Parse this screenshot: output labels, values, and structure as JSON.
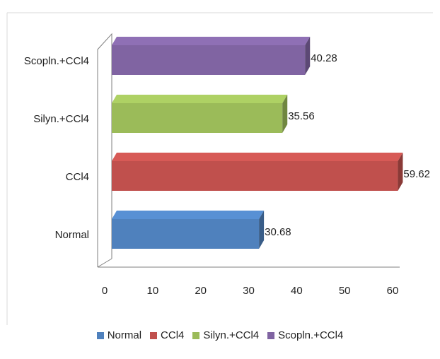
{
  "chart_data": {
    "type": "bar",
    "orientation": "horizontal",
    "style": "3d",
    "title": "",
    "xlabel": "",
    "ylabel": "",
    "categories": [
      "Normal",
      "CCl4",
      "Silyn.+CCl4",
      "Scopln.+CCl4"
    ],
    "values": [
      30.68,
      59.62,
      35.56,
      40.28
    ],
    "data_labels": [
      "30.68",
      "59.62",
      "35.56",
      "40.28"
    ],
    "colors": [
      "#4f81bd",
      "#c0504d",
      "#9bbb59",
      "#8064a2"
    ],
    "xlim": [
      0,
      60
    ],
    "x_ticks": [
      "0",
      "10",
      "20",
      "30",
      "40",
      "50",
      "60"
    ],
    "grid": false,
    "legend": {
      "placement": "bottom",
      "entries": [
        "Normal",
        "CCl4",
        "Silyn.+CCl4",
        "Scopln.+CCl4"
      ]
    }
  }
}
